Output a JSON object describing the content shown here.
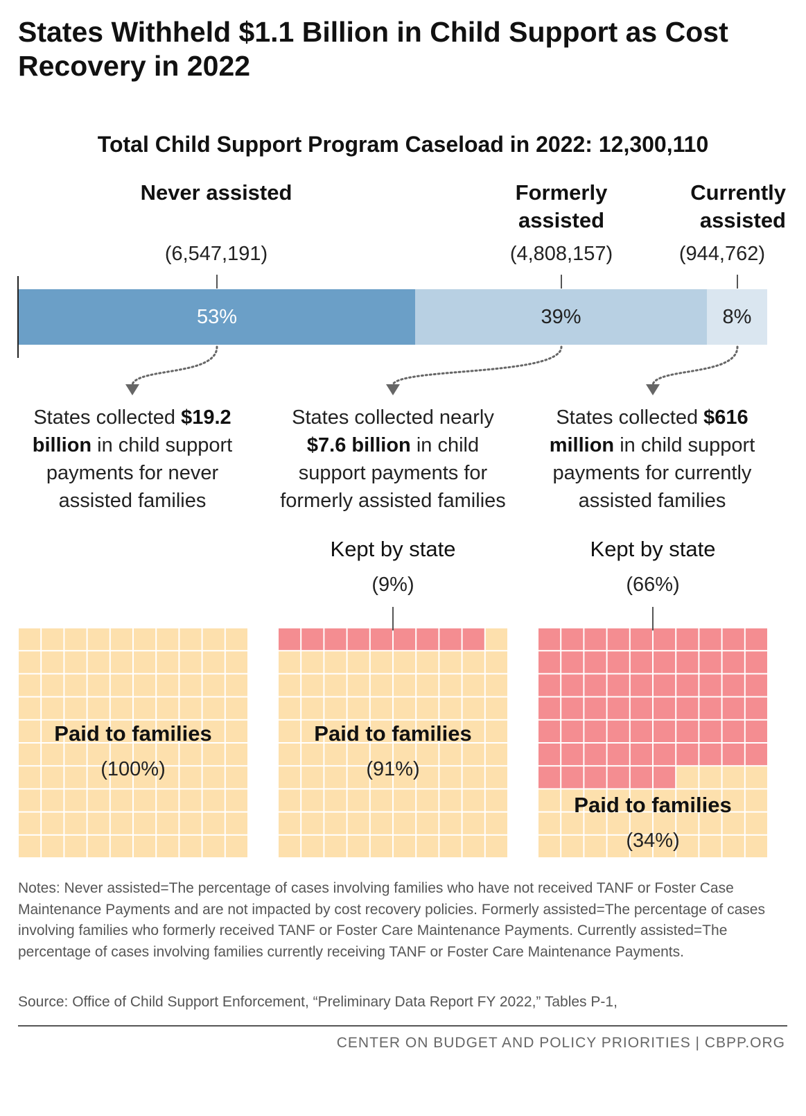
{
  "title": "States Withheld $1.1 Billion in Child Support as Cost Recovery in 2022",
  "chart_data": [
    {
      "type": "bar",
      "title": "Total Child Support Program Caseload in 2022: 12,300,110",
      "orientation": "horizontal-stacked",
      "segments": [
        {
          "name": "Never assisted",
          "count": "(6,547,191)",
          "count_value": 6547191,
          "percent": 53,
          "percent_label": "53%",
          "color": "#6b9fc7",
          "text_color": "#ffffff"
        },
        {
          "name": "Formerly assisted",
          "count": "(4,808,157)",
          "count_value": 4808157,
          "percent": 39,
          "percent_label": "39%",
          "color": "#b8d0e3",
          "text_color": "#222222"
        },
        {
          "name": "Currently assisted",
          "count": "(944,762)",
          "count_value": 944762,
          "percent": 8,
          "percent_label": "8%",
          "color": "#dae6f0",
          "text_color": "#222222"
        }
      ]
    },
    {
      "type": "waffle",
      "grid": [
        10,
        10
      ],
      "panels": [
        {
          "desc": {
            "pre": "States collected ",
            "bold": "$19.2 billion",
            "post": " in child support payments for never assisted families"
          },
          "kept_percent": 0,
          "kept_label": "",
          "kept_pct_label": "",
          "paid_label": "Paid to families",
          "paid_pct_label": "(100%)"
        },
        {
          "desc": {
            "pre": "States collected nearly ",
            "bold": "$7.6 billion",
            "post": " in child support payments for formerly assisted families"
          },
          "kept_percent": 9,
          "kept_label": "Kept by state",
          "kept_pct_label": "(9%)",
          "paid_label": "Paid to families",
          "paid_pct_label": "(91%)"
        },
        {
          "desc": {
            "pre": "States collected ",
            "bold": "$616 million",
            "post": " in child support payments for currently assisted families"
          },
          "kept_percent": 66,
          "kept_label": "Kept by state",
          "kept_pct_label": "(66%)",
          "paid_label": "Paid to families",
          "paid_pct_label": "(34%)"
        }
      ],
      "colors": {
        "kept": "#f48d91",
        "paid": "#fde0ad",
        "grid_line": "#ffffff"
      }
    }
  ],
  "notes": "Notes: Never assisted=The percentage of cases involving families who have not received TANF or Foster Case Maintenance Payments and are not impacted by cost recovery policies. Formerly assisted=The percentage of cases involving families who formerly received TANF or Foster Care Maintenance Payments. Currently assisted=The percentage of cases involving families currently receiving TANF or Foster Care Maintenance Payments.",
  "source": "Source: Office of Child Support Enforcement, “Preliminary Data Report FY 2022,” Tables P-1,",
  "footer": "CENTER ON BUDGET AND POLICY PRIORITIES | CBPP.ORG"
}
